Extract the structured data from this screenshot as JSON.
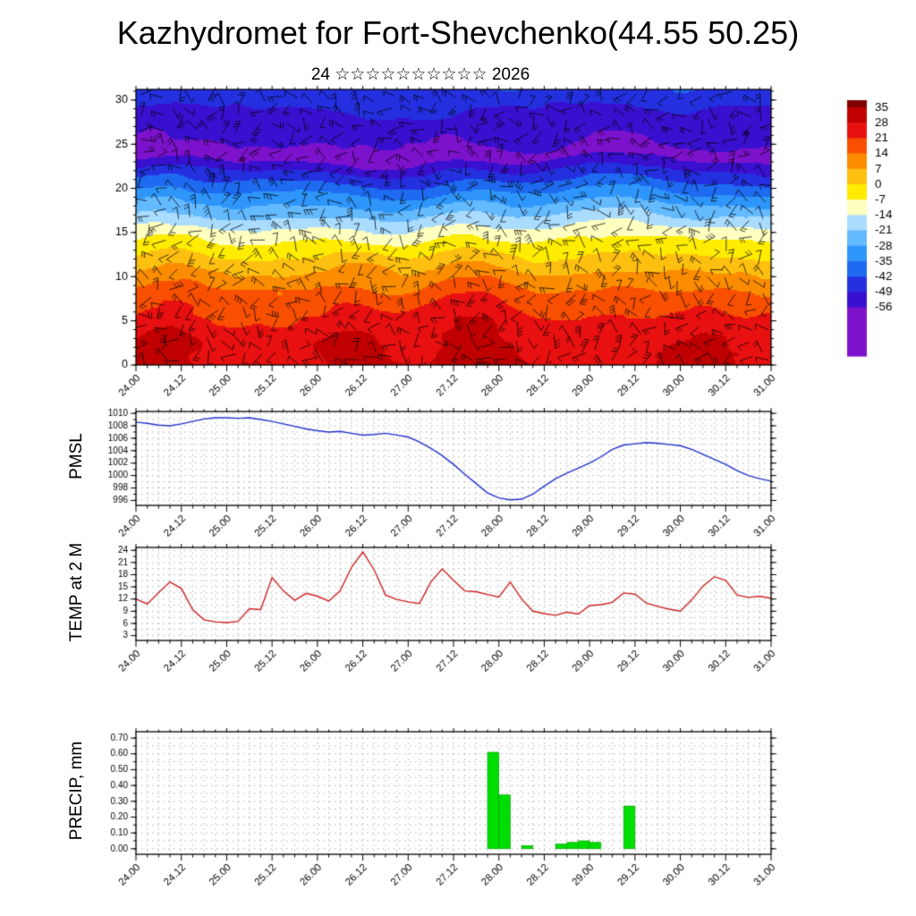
{
  "header": {
    "title": "Kazhydromet for Fort-Shevchenko(44.55 50.25)",
    "subtitle": "24 ☆☆☆☆☆☆☆☆☆☆ 2026"
  },
  "panels": {
    "pmsl": {
      "label": "PMSL"
    },
    "temp": {
      "label": "TEMP at 2 M"
    },
    "precip": {
      "label": "PRECIP, mm"
    }
  },
  "x_axis": {
    "start": 24,
    "end": 31,
    "major_step": 0.5,
    "minor_step": 0.125,
    "tick_labels": [
      "24.00",
      "24.12",
      "25.00",
      "25.12",
      "26.00",
      "26.12",
      "27.00",
      "27.12",
      "28.00",
      "28.12",
      "29.00",
      "29.12",
      "30.00",
      "30.12",
      "31.00"
    ]
  },
  "colorbar": {
    "tick_labels": [
      "35",
      "28",
      "21",
      "14",
      "7",
      "0",
      "-7",
      "-14",
      "-21",
      "-28",
      "-35",
      "-42",
      "-49",
      "-56"
    ],
    "colors": [
      "#7f0000",
      "#c00000",
      "#e81010",
      "#f85000",
      "#fb8c00",
      "#fdc010",
      "#ffec00",
      "#ffffc0",
      "#aadcff",
      "#64baff",
      "#2e96fa",
      "#1e6af0",
      "#2430e0",
      "#3a10d0",
      "#7d12cc"
    ]
  },
  "chart_data": [
    {
      "type": "heatmap",
      "name": "temperature-height-cross-section-with-wind-barbs",
      "ylim": [
        0,
        31.2
      ],
      "yticks": [
        0,
        5,
        10,
        15,
        20,
        25,
        30
      ],
      "levels": [
        35,
        28,
        21,
        14,
        7,
        0,
        -7,
        -14,
        -21,
        -28,
        -35,
        -42,
        -49,
        -56
      ],
      "colors": [
        "#7f0000",
        "#c00000",
        "#e81010",
        "#f85000",
        "#fb8c00",
        "#fdc010",
        "#ffec00",
        "#ffffc0",
        "#aadcff",
        "#64baff",
        "#2e96fa",
        "#1e6af0",
        "#2430e0",
        "#3a10d0",
        "#7d12cc"
      ],
      "surface_base": 26,
      "warm_cores": [
        {
          "t": 24.35,
          "amp": 6,
          "w": 0.45
        },
        {
          "t": 26.45,
          "amp": 7,
          "w": 0.5
        },
        {
          "t": 27.7,
          "amp": 8,
          "w": 0.45
        },
        {
          "t": 30.3,
          "amp": 3,
          "w": 0.5
        }
      ],
      "trop_base": 23.2,
      "trop_min_temp": -59,
      "top_temp": -44,
      "wind_barbs": true
    },
    {
      "type": "line",
      "name": "PMSL",
      "units": "hPa",
      "color": "#2233cc",
      "x_start": 24,
      "x_step": 0.125,
      "ylim": [
        995.2,
        1010.3
      ],
      "yticks": [
        996,
        998,
        1000,
        1002,
        1004,
        1006,
        1008,
        1010
      ],
      "values": [
        1008.6,
        1008.4,
        1008.1,
        1008.0,
        1008.3,
        1008.7,
        1009.1,
        1009.3,
        1009.3,
        1009.2,
        1009.3,
        1009.0,
        1008.7,
        1008.3,
        1007.9,
        1007.5,
        1007.2,
        1007.0,
        1007.1,
        1006.8,
        1006.5,
        1006.6,
        1006.8,
        1006.5,
        1006.2,
        1005.4,
        1004.4,
        1003.2,
        1001.8,
        1000.2,
        998.7,
        997.2,
        996.4,
        996.1,
        996.2,
        997.0,
        998.3,
        999.5,
        1000.4,
        1001.2,
        1002.0,
        1003.0,
        1004.2,
        1004.9,
        1005.1,
        1005.3,
        1005.2,
        1005.0,
        1004.8,
        1004.2,
        1003.4,
        1002.6,
        1001.8,
        1000.8,
        1000.0,
        999.5,
        999.1
      ]
    },
    {
      "type": "line",
      "name": "TEMP at 2 M",
      "units": "C",
      "color": "#cc2222",
      "x_start": 24,
      "x_step": 0.125,
      "ylim": [
        1.8,
        24.7
      ],
      "yticks": [
        3,
        6,
        9,
        12,
        15,
        18,
        21,
        24
      ],
      "values": [
        12.0,
        10.8,
        13.6,
        16.2,
        14.6,
        9.4,
        6.9,
        6.4,
        6.2,
        6.5,
        9.6,
        9.4,
        17.3,
        14.0,
        11.7,
        13.4,
        12.7,
        11.5,
        14.0,
        19.8,
        23.6,
        19.2,
        13.0,
        11.9,
        11.3,
        10.9,
        16.2,
        19.4,
        16.6,
        14.0,
        13.8,
        13.1,
        12.5,
        16.2,
        12.0,
        9.0,
        8.4,
        8.0,
        8.8,
        8.3,
        10.4,
        10.6,
        11.2,
        13.5,
        13.2,
        11.0,
        10.2,
        9.5,
        9.0,
        11.8,
        15.2,
        17.5,
        16.6,
        13.0,
        12.4,
        12.7,
        12.2
      ]
    },
    {
      "type": "bar",
      "name": "PRECIP, mm",
      "units": "mm",
      "color": "#00dd00",
      "bar_width_days": 0.125,
      "ylim": [
        -0.035,
        0.74
      ],
      "yticks": [
        0,
        0.1,
        0.2,
        0.3,
        0.4,
        0.5,
        0.6,
        0.7
      ],
      "ytick_labels": [
        "0.00",
        "0.10",
        "0.20",
        "0.30",
        "0.40",
        "0.50",
        "0.60",
        "0.70"
      ],
      "bars": [
        {
          "t": 27.875,
          "v": 0.61
        },
        {
          "t": 28.0,
          "v": 0.34
        },
        {
          "t": 28.25,
          "v": 0.02
        },
        {
          "t": 28.625,
          "v": 0.03
        },
        {
          "t": 28.75,
          "v": 0.04
        },
        {
          "t": 28.875,
          "v": 0.05
        },
        {
          "t": 29.0,
          "v": 0.04
        },
        {
          "t": 29.375,
          "v": 0.27
        }
      ]
    }
  ]
}
